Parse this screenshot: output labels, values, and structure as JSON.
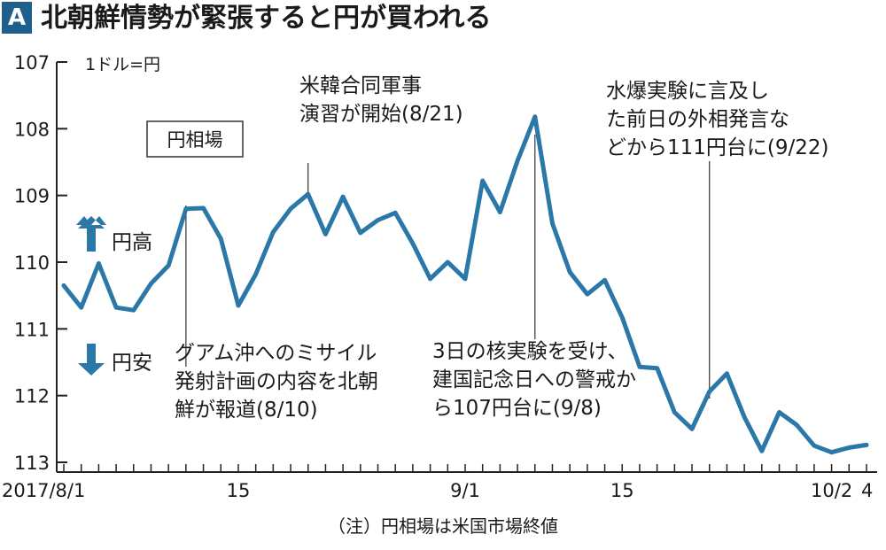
{
  "header": {
    "panel_letter": "A",
    "title": "北朝鮮情勢が緊張すると円が買われる"
  },
  "colors": {
    "accent": "#1f5f8b",
    "line": "#2b78a8",
    "text": "#1a1a1a"
  },
  "note": "（注）円相場は米国市場終値",
  "chart_data": {
    "type": "line",
    "title": "",
    "unit_label": "1ドル=円",
    "series_label": "円相場",
    "legend_up": "円高",
    "legend_down": "円安",
    "y_inverted": true,
    "ylim": [
      107,
      113
    ],
    "yticks": [
      107,
      108,
      109,
      110,
      111,
      112,
      113
    ],
    "xlim": [
      0,
      46
    ],
    "xtick_labels": [
      {
        "x": 0,
        "label": "2017/8/1"
      },
      {
        "x": 10,
        "label": "15"
      },
      {
        "x": 23,
        "label": "9/1"
      },
      {
        "x": 32,
        "label": "15"
      },
      {
        "x": 44,
        "label": "10/2"
      },
      {
        "x": 46,
        "label": "4"
      }
    ],
    "x": [
      0,
      1,
      2,
      3,
      4,
      5,
      6,
      7,
      8,
      9,
      10,
      11,
      12,
      13,
      14,
      15,
      16,
      17,
      18,
      19,
      20,
      21,
      22,
      23,
      24,
      25,
      26,
      27,
      28,
      29,
      30,
      31,
      32,
      33,
      34,
      35,
      36,
      37,
      38,
      39,
      40,
      41,
      42,
      43,
      44,
      45,
      46
    ],
    "values": [
      110.35,
      110.68,
      110.02,
      110.68,
      110.72,
      110.32,
      110.05,
      109.2,
      109.19,
      109.65,
      110.65,
      110.18,
      109.55,
      109.2,
      108.98,
      109.58,
      109.02,
      109.56,
      109.37,
      109.26,
      109.72,
      110.25,
      110.0,
      110.25,
      108.78,
      109.25,
      108.48,
      107.82,
      109.42,
      110.15,
      110.48,
      110.27,
      110.83,
      111.57,
      111.59,
      112.25,
      112.5,
      111.94,
      111.67,
      112.32,
      112.83,
      112.25,
      112.44,
      112.75,
      112.85,
      112.78,
      112.74
    ],
    "annotations": [
      {
        "x": 7,
        "text": "グアム沖へのミサイル発射計画の内容を北朝鮮が報道(8/10)"
      },
      {
        "x": 14,
        "text": "米韓合同軍事演習が開始(8/21)"
      },
      {
        "x": 27,
        "text": "3日の核実験を受け、建国記念日への警戒から107円台に(9/8)"
      },
      {
        "x": 37,
        "text": "水爆実験に言及した前日の外相発言などから111円台に(9/22)"
      }
    ]
  }
}
